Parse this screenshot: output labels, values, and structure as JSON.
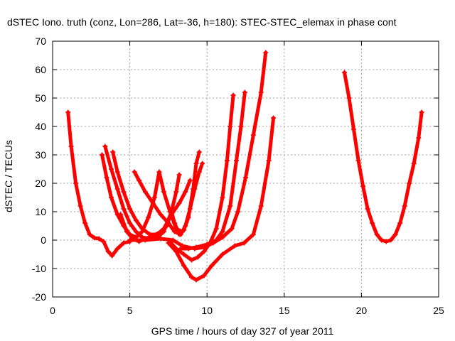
{
  "chart_data": {
    "type": "scatter",
    "title": "dSTEC Iono. truth (conz, Lon=286, Lat=-36, h=180): STEC-STEC_elemax in phase cont",
    "xlabel": "GPS time / hours of day 327 of year 2011",
    "ylabel": "dSTEC  / TECUs",
    "xlim": [
      0,
      25
    ],
    "ylim": [
      -20,
      70
    ],
    "xticks": [
      0,
      5,
      10,
      15,
      20,
      25
    ],
    "yticks": [
      -20,
      -10,
      0,
      10,
      20,
      30,
      40,
      50,
      60,
      70
    ],
    "grid": true,
    "color": "#ff0000",
    "marker": "plus",
    "series": [
      {
        "points": [
          [
            1.0,
            45
          ],
          [
            1.2,
            33
          ],
          [
            1.5,
            20
          ],
          [
            1.8,
            12
          ],
          [
            2.1,
            6
          ],
          [
            2.4,
            2
          ],
          [
            2.7,
            0.8
          ],
          [
            3.0,
            0.5
          ],
          [
            3.3,
            -0.5
          ],
          [
            3.6,
            -4
          ],
          [
            3.85,
            -5.5
          ],
          [
            4.2,
            -3
          ],
          [
            4.6,
            -1
          ],
          [
            5.0,
            -0.5
          ]
        ]
      },
      {
        "points": [
          [
            3.2,
            30
          ],
          [
            3.5,
            22
          ],
          [
            3.8,
            15
          ],
          [
            4.2,
            9
          ],
          [
            4.6,
            5
          ],
          [
            5.0,
            2
          ],
          [
            5.4,
            1
          ],
          [
            5.8,
            3
          ],
          [
            6.2,
            8
          ],
          [
            6.6,
            15
          ],
          [
            6.9,
            24
          ],
          [
            7.2,
            17
          ],
          [
            7.6,
            10
          ],
          [
            8.0,
            4
          ],
          [
            8.4,
            3
          ]
        ]
      },
      {
        "points": [
          [
            3.4,
            33
          ],
          [
            3.8,
            25
          ],
          [
            4.2,
            18
          ],
          [
            4.6,
            11
          ],
          [
            5.0,
            6
          ],
          [
            5.4,
            3
          ],
          [
            5.8,
            1
          ],
          [
            6.3,
            0.5
          ],
          [
            6.8,
            1
          ],
          [
            7.2,
            3
          ],
          [
            7.7,
            10
          ],
          [
            8.0,
            17
          ],
          [
            8.2,
            23
          ]
        ]
      },
      {
        "points": [
          [
            3.9,
            31
          ],
          [
            4.2,
            24
          ],
          [
            4.6,
            17
          ],
          [
            5.0,
            11
          ],
          [
            5.4,
            7
          ],
          [
            5.8,
            4
          ],
          [
            6.3,
            2
          ],
          [
            6.8,
            2
          ],
          [
            7.2,
            4
          ],
          [
            7.7,
            9
          ],
          [
            8.2,
            13
          ],
          [
            8.6,
            17
          ],
          [
            8.9,
            21
          ]
        ]
      },
      {
        "points": [
          [
            5.3,
            24
          ],
          [
            5.6,
            21
          ],
          [
            6.0,
            17
          ],
          [
            6.5,
            13
          ],
          [
            7.0,
            9
          ],
          [
            7.5,
            6
          ],
          [
            7.9,
            3
          ],
          [
            8.3,
            2
          ],
          [
            8.6,
            5
          ],
          [
            8.9,
            11
          ],
          [
            9.2,
            18
          ],
          [
            9.5,
            24
          ],
          [
            9.7,
            27
          ]
        ]
      },
      {
        "points": [
          [
            4.4,
            9
          ],
          [
            4.8,
            3
          ],
          [
            5.2,
            0.5
          ],
          [
            5.6,
            -0.5
          ],
          [
            6.0,
            0.5
          ],
          [
            6.5,
            1.5
          ],
          [
            7.0,
            3
          ],
          [
            7.4,
            5
          ],
          [
            7.7,
            10
          ],
          [
            7.9,
            6
          ],
          [
            8.2,
            2
          ],
          [
            8.5,
            3.5
          ],
          [
            8.8,
            8
          ],
          [
            9.1,
            18
          ],
          [
            9.3,
            27
          ],
          [
            9.5,
            31
          ]
        ]
      },
      {
        "points": [
          [
            5.0,
            0
          ],
          [
            6.0,
            0
          ],
          [
            7.0,
            0.5
          ],
          [
            7.8,
            0
          ],
          [
            8.4,
            -2
          ],
          [
            9.2,
            -3
          ],
          [
            9.8,
            -2.5
          ],
          [
            10.4,
            -1
          ],
          [
            11.0,
            1
          ],
          [
            11.6,
            4
          ],
          [
            12.0,
            10
          ],
          [
            12.5,
            22
          ],
          [
            13.0,
            37
          ],
          [
            13.5,
            52
          ],
          [
            13.8,
            66
          ]
        ]
      },
      {
        "points": [
          [
            8.3,
            -3
          ],
          [
            8.8,
            -3
          ],
          [
            9.3,
            -2.5
          ],
          [
            10.0,
            -1.5
          ],
          [
            10.6,
            0
          ],
          [
            11.0,
            3
          ],
          [
            11.5,
            12
          ],
          [
            11.9,
            28
          ],
          [
            12.2,
            40
          ],
          [
            12.45,
            52
          ]
        ]
      },
      {
        "points": [
          [
            7.5,
            0
          ],
          [
            8.0,
            -3
          ],
          [
            8.5,
            -5
          ],
          [
            9.0,
            -7
          ],
          [
            9.4,
            -6
          ],
          [
            9.8,
            -4
          ],
          [
            10.2,
            -1
          ],
          [
            10.6,
            4
          ],
          [
            11.0,
            15
          ],
          [
            11.3,
            28
          ],
          [
            11.5,
            40
          ],
          [
            11.7,
            51
          ]
        ]
      },
      {
        "points": [
          [
            7.5,
            -1
          ],
          [
            8.0,
            -4
          ],
          [
            8.5,
            -9
          ],
          [
            9.0,
            -13
          ],
          [
            9.3,
            -14
          ],
          [
            9.8,
            -12.5
          ],
          [
            10.3,
            -9
          ],
          [
            11.0,
            -5
          ],
          [
            11.8,
            -2
          ],
          [
            12.4,
            -1
          ],
          [
            13.0,
            2
          ],
          [
            13.5,
            12
          ],
          [
            14.0,
            28
          ],
          [
            14.3,
            43
          ]
        ]
      },
      {
        "points": [
          [
            18.9,
            59
          ],
          [
            19.2,
            50
          ],
          [
            19.5,
            39
          ],
          [
            19.8,
            28
          ],
          [
            20.1,
            19
          ],
          [
            20.4,
            11
          ],
          [
            20.7,
            6
          ],
          [
            21.0,
            2
          ],
          [
            21.3,
            0
          ],
          [
            21.6,
            -0.5
          ],
          [
            21.9,
            0
          ],
          [
            22.2,
            2
          ],
          [
            22.5,
            6
          ],
          [
            22.8,
            12
          ],
          [
            23.1,
            20
          ],
          [
            23.4,
            27
          ],
          [
            23.7,
            36
          ],
          [
            23.9,
            45
          ]
        ]
      }
    ]
  }
}
